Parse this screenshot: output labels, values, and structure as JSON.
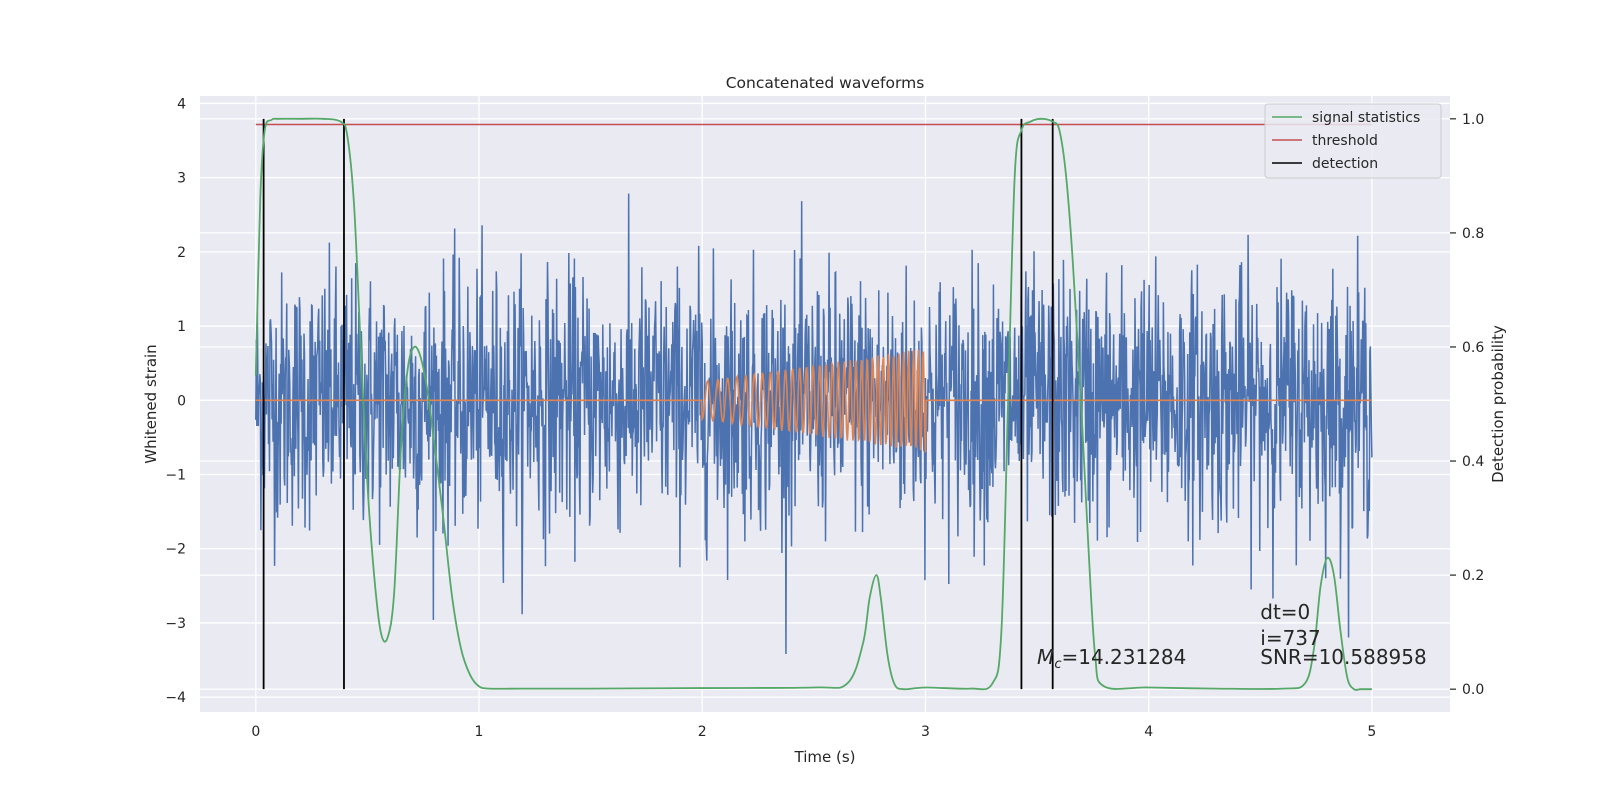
{
  "chart_data": {
    "type": "line",
    "title": "Concatenated waveforms",
    "xlabel": "Time (s)",
    "ylabel": "Whitened strain",
    "ylabel_right": "Detection probability",
    "xlim": [
      -0.25,
      5.35
    ],
    "ylim": [
      -4.2,
      4.1
    ],
    "ylim_right": [
      -0.04,
      1.04
    ],
    "x_ticks": [
      0,
      1,
      2,
      3,
      4,
      5
    ],
    "y_ticks": [
      -4,
      -3,
      -2,
      -1,
      0,
      1,
      2,
      3,
      4
    ],
    "y_ticks_right": [
      0.0,
      0.2,
      0.4,
      0.6,
      0.8,
      1.0
    ],
    "x_tick_labels": [
      "0",
      "1",
      "2",
      "3",
      "4",
      "5"
    ],
    "y_tick_labels": [
      "−4",
      "−3",
      "−2",
      "−1",
      "0",
      "1",
      "2",
      "3",
      "4"
    ],
    "y_tick_labels_right": [
      "0.0",
      "0.2",
      "0.4",
      "0.6",
      "0.8",
      "1.0"
    ],
    "grid": true,
    "legend_position": "top-right",
    "legend": [
      "signal statistics",
      "threshold",
      "detection"
    ],
    "colors": {
      "strain": "#4c72b0",
      "template": "#dd8452",
      "signal_statistics": "#55a868",
      "threshold": "#c44e52",
      "detection": "#000000",
      "axes_bg": "#eaeaf2",
      "grid": "#ffffff"
    },
    "series": [
      {
        "name": "signal statistics",
        "axis": "right",
        "x": [
          0.0,
          0.02,
          0.04,
          0.07,
          0.1,
          0.2,
          0.3,
          0.38,
          0.41,
          0.44,
          0.47,
          0.5,
          0.53,
          0.56,
          0.59,
          0.62,
          0.65,
          0.68,
          0.71,
          0.74,
          0.77,
          0.8,
          0.84,
          0.88,
          0.92,
          0.96,
          1.0,
          1.05,
          1.2,
          1.5,
          2.0,
          2.5,
          2.65,
          2.72,
          2.75,
          2.78,
          2.8,
          2.83,
          2.86,
          2.9,
          3.0,
          3.2,
          3.3,
          3.34,
          3.37,
          3.4,
          3.43,
          3.47,
          3.52,
          3.57,
          3.6,
          3.63,
          3.66,
          3.7,
          3.73,
          3.76,
          3.8,
          4.0,
          4.3,
          4.6,
          4.7,
          4.74,
          4.77,
          4.8,
          4.83,
          4.86,
          4.89,
          4.92,
          4.95,
          5.0
        ],
        "values": [
          0.55,
          0.86,
          0.98,
          0.998,
          1.0,
          1.0,
          1.0,
          0.995,
          0.97,
          0.85,
          0.6,
          0.36,
          0.2,
          0.1,
          0.09,
          0.17,
          0.42,
          0.56,
          0.6,
          0.58,
          0.52,
          0.43,
          0.3,
          0.16,
          0.07,
          0.025,
          0.005,
          0.001,
          0.001,
          0.001,
          0.002,
          0.003,
          0.01,
          0.08,
          0.16,
          0.2,
          0.16,
          0.06,
          0.01,
          0.0,
          0.003,
          0.001,
          0.01,
          0.1,
          0.5,
          0.9,
          0.98,
          0.995,
          1.0,
          0.995,
          0.98,
          0.9,
          0.75,
          0.48,
          0.25,
          0.06,
          0.005,
          0.003,
          0.001,
          0.001,
          0.01,
          0.07,
          0.18,
          0.23,
          0.2,
          0.1,
          0.02,
          0.0,
          0.0,
          0.0
        ]
      },
      {
        "name": "threshold",
        "axis": "right",
        "x": [
          0.0,
          5.0
        ],
        "values": [
          0.99,
          0.99
        ]
      },
      {
        "name": "detection",
        "axis": "right",
        "type": "vlines",
        "x": [
          0.035,
          0.395,
          3.43,
          3.57
        ],
        "range": [
          0.0,
          1.0
        ]
      },
      {
        "axis": "left",
        "type": "noise",
        "x_range": [
          0.0,
          5.0
        ],
        "std": 0.85,
        "samples": 2200
      },
      {
        "axis": "left",
        "type": "chirp",
        "x_range": [
          2.0,
          3.0
        ],
        "amp_start": 0.25,
        "amp_end": 0.7,
        "cycles": 34
      }
    ],
    "annotations": [
      {
        "text_italic": "M",
        "text_sub": "c",
        "text": "=14.231284",
        "x": 3.5,
        "y": -3.55
      },
      {
        "text": "dt=0",
        "x": 4.5,
        "y": -2.95
      },
      {
        "text": "i=737",
        "x": 4.5,
        "y": -3.3
      },
      {
        "text": "SNR=10.588958",
        "x": 4.5,
        "y": -3.55
      }
    ]
  }
}
